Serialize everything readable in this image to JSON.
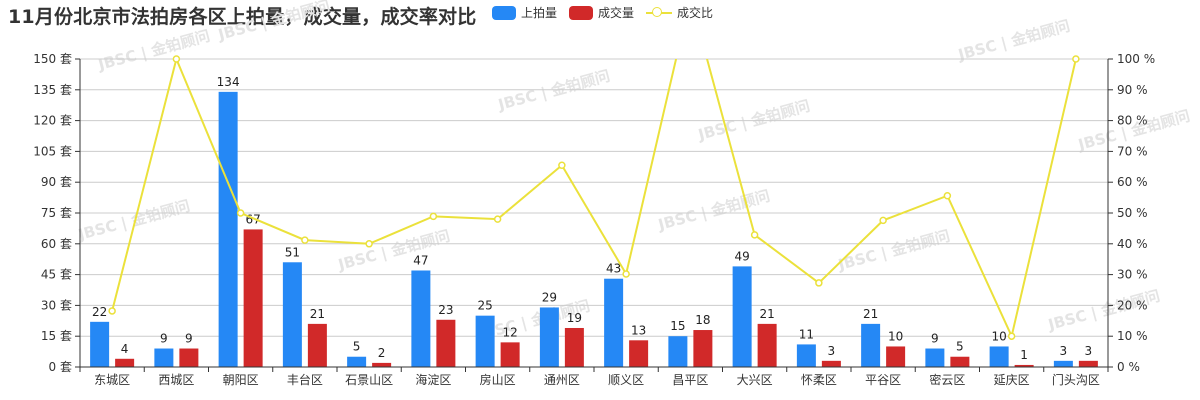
{
  "title": "11月份北京市法拍房各区上拍量，成交量，成交率对比",
  "legend": {
    "items": [
      {
        "label": "上拍量",
        "color": "#2588f5",
        "type": "bar"
      },
      {
        "label": "成交量",
        "color": "#d12929",
        "type": "bar"
      },
      {
        "label": "成交比",
        "color": "#ebe13b",
        "type": "line"
      }
    ]
  },
  "watermark": "JBSC | 金铂顾问",
  "chart_data": {
    "type": "bar",
    "title": "11月份北京市法拍房各区上拍量，成交量，成交率对比",
    "xlabel": "",
    "ylabel": "",
    "categories": [
      "东城区",
      "西城区",
      "朝阳区",
      "丰台区",
      "石景山区",
      "海淀区",
      "房山区",
      "通州区",
      "顺义区",
      "昌平区",
      "大兴区",
      "怀柔区",
      "平谷区",
      "密云区",
      "延庆区",
      "门头沟区"
    ],
    "series": [
      {
        "name": "上拍量",
        "type": "bar",
        "axis": "left",
        "color": "#2588f5",
        "values": [
          22,
          9,
          134,
          51,
          5,
          47,
          25,
          29,
          43,
          15,
          49,
          11,
          21,
          9,
          10,
          3
        ]
      },
      {
        "name": "成交量",
        "type": "bar",
        "axis": "left",
        "color": "#d12929",
        "values": [
          4,
          9,
          67,
          21,
          2,
          23,
          12,
          19,
          13,
          18,
          21,
          3,
          10,
          5,
          1,
          3
        ]
      },
      {
        "name": "成交比",
        "type": "line",
        "axis": "right",
        "color": "#ebe13b",
        "unit": "%",
        "values": [
          18.2,
          100,
          50,
          41.2,
          40,
          48.9,
          48,
          65.5,
          30.2,
          120,
          42.9,
          27.3,
          47.6,
          55.6,
          10,
          100
        ]
      }
    ],
    "left_axis": {
      "ticks": [
        "0 套",
        "15 套",
        "30 套",
        "45 套",
        "60 套",
        "75 套",
        "90 套",
        "105 套",
        "120 套",
        "135 套",
        "150 套"
      ],
      "ylim": [
        0,
        150
      ],
      "unit": "套"
    },
    "right_axis": {
      "ticks": [
        "0 %",
        "10 %",
        "20 %",
        "30 %",
        "40 %",
        "50 %",
        "60 %",
        "70 %",
        "80 %",
        "90 %",
        "100 %"
      ],
      "ylim": [
        0,
        100
      ],
      "unit": "%"
    },
    "grid": true,
    "legend_position": "top"
  }
}
